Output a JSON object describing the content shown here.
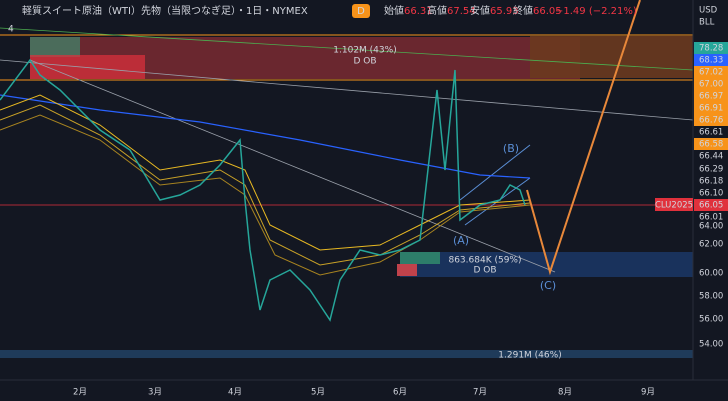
{
  "header": {
    "title": "軽質スイート原油（WTI）先物（当限つなぎ足）・1日・NYMEX",
    "badge": "D",
    "ohlc": [
      {
        "label": "始値",
        "value": "66.31"
      },
      {
        "label": "高値",
        "value": "67.54"
      },
      {
        "label": "安値",
        "value": "65.93"
      },
      {
        "label": "終値",
        "value": "66.05"
      }
    ],
    "change": "−1.49 (−2.21%)",
    "indicator_count": "4"
  },
  "price_axis": {
    "currency": "USD",
    "unit": "BLL",
    "labels": [
      "78.28",
      "68.33",
      "67.02",
      "67.00",
      "66.97",
      "66.91",
      "66.76",
      "66.61",
      "66.58",
      "66.44",
      "66.29",
      "66.18",
      "66.10",
      "66.05",
      "66.01",
      "64.00",
      "62.00",
      "60.00",
      "58.00",
      "56.00",
      "54.00"
    ],
    "symbol_tag": "CLU2025"
  },
  "time_axis": {
    "labels": [
      "2月",
      "3月",
      "4月",
      "5月",
      "6月",
      "7月",
      "8月",
      "9月"
    ]
  },
  "annotations": {
    "upper_zone_volume": "1.102M (43%)",
    "upper_zone_label": "D OB",
    "lower_zone_volume": "863.684K (59%)",
    "lower_zone_label": "D OB",
    "wave_a": "(A)",
    "wave_b": "(B)",
    "wave_c": "(C)",
    "bottom_volume": "1.291M (46%)"
  }
}
